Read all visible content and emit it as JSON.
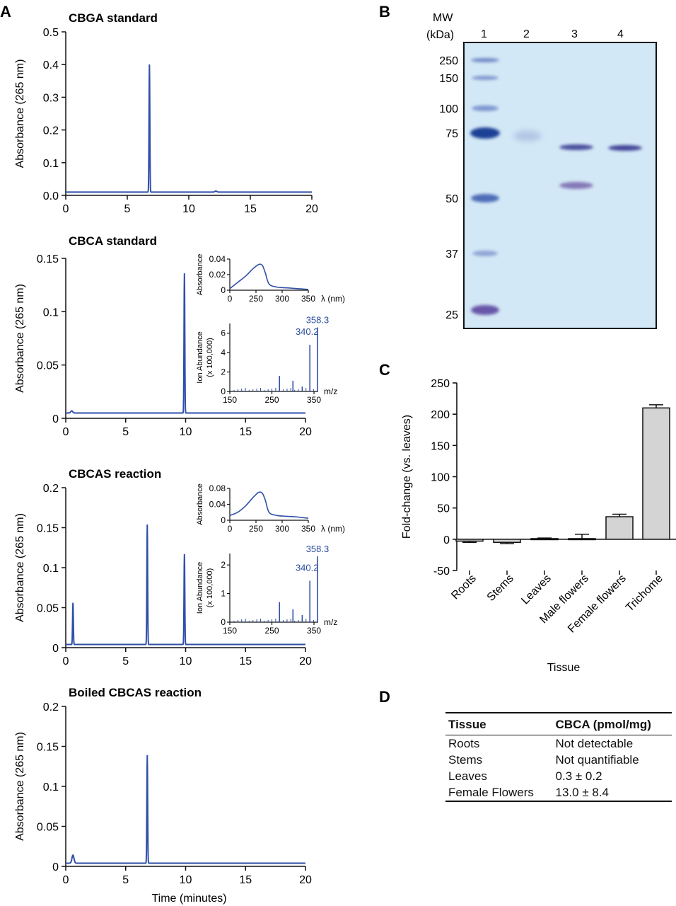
{
  "panels": {
    "a": "A",
    "b": "B",
    "c": "C",
    "d": "D"
  },
  "panel_a": {
    "series_color": "#2f4fa8",
    "ylabel": "Absorbance (265 nm)",
    "xlabel": "Time (minutes)",
    "xticks": [
      "0",
      "5",
      "10",
      "15",
      "20"
    ]
  },
  "chart_data": [
    {
      "type": "line",
      "title": "CBGA standard",
      "ylabel": "Absorbance (265 nm)",
      "xlim": [
        0,
        20
      ],
      "ylim": [
        0,
        0.5
      ],
      "yticks": [
        "0.0",
        "0.1",
        "0.2",
        "0.3",
        "0.4",
        "0.5"
      ],
      "baseline": 0.01,
      "peaks": [
        {
          "x": 6.8,
          "y": 0.4
        },
        {
          "x": 12.2,
          "y": 0.013
        }
      ]
    },
    {
      "type": "line",
      "title": "CBCA standard",
      "ylabel": "Absorbance (265 nm)",
      "xlim": [
        0,
        20
      ],
      "ylim": [
        0,
        0.15
      ],
      "yticks": [
        "0",
        "0.05",
        "0.1",
        "0.15"
      ],
      "baseline": 0.005,
      "peaks": [
        {
          "x": 0.5,
          "y": 0.007
        },
        {
          "x": 9.9,
          "y": 0.136
        }
      ],
      "insets": {
        "uv": {
          "ylabel": "Absorbance",
          "xlabel": "λ (nm)",
          "xticks": [
            "0",
            "250",
            "300",
            "350"
          ],
          "yticks": [
            "0",
            "0.02",
            "0.04"
          ],
          "points": [
            [
              200,
              0.002
            ],
            [
              215,
              0.01
            ],
            [
              230,
              0.018
            ],
            [
              245,
              0.028
            ],
            [
              255,
              0.033
            ],
            [
              262,
              0.032
            ],
            [
              268,
              0.022
            ],
            [
              275,
              0.008
            ],
            [
              290,
              0.004
            ],
            [
              310,
              0.003
            ],
            [
              330,
              0.002
            ],
            [
              350,
              0.001
            ]
          ]
        },
        "ms": {
          "ylabel": "Ion Abundance",
          "ylabel2": "(x 100,000)",
          "xlabel": "m/z",
          "xticks": [
            "150",
            "250",
            "350"
          ],
          "yticks": [
            "0",
            "2",
            "4",
            "6"
          ],
          "peaks": [
            [
              268,
              1.6
            ],
            [
              300,
              1.1
            ],
            [
              322,
              0.5
            ],
            [
              340.2,
              4.8
            ],
            [
              358.3,
              6.6
            ]
          ],
          "labels": [
            "340.2",
            "358.3"
          ]
        }
      }
    },
    {
      "type": "line",
      "title": "CBCAS reaction",
      "ylabel": "Absorbance (265 nm)",
      "xlim": [
        0,
        20
      ],
      "ylim": [
        0,
        0.2
      ],
      "yticks": [
        "0",
        "0.05",
        "0.1",
        "0.15",
        "0.2"
      ],
      "baseline": 0.004,
      "peaks": [
        {
          "x": 0.6,
          "y": 0.056
        },
        {
          "x": 6.8,
          "y": 0.154
        },
        {
          "x": 9.9,
          "y": 0.117
        }
      ],
      "insets": {
        "uv": {
          "ylabel": "Absorbance",
          "xlabel": "λ (nm)",
          "xticks": [
            "0",
            "250",
            "300",
            "350"
          ],
          "yticks": [
            "0",
            "0.04",
            "0.08"
          ],
          "points": [
            [
              200,
              0.012
            ],
            [
              215,
              0.02
            ],
            [
              230,
              0.036
            ],
            [
              245,
              0.058
            ],
            [
              255,
              0.07
            ],
            [
              262,
              0.068
            ],
            [
              268,
              0.05
            ],
            [
              275,
              0.02
            ],
            [
              290,
              0.012
            ],
            [
              310,
              0.01
            ],
            [
              330,
              0.008
            ],
            [
              350,
              0.005
            ]
          ]
        },
        "ms": {
          "ylabel": "Ion Abundance",
          "ylabel2": "(x 100,000)",
          "xlabel": "m/z",
          "xticks": [
            "150",
            "250",
            "350"
          ],
          "yticks": [
            "0",
            "1",
            "2"
          ],
          "peaks": [
            [
              268,
              0.7
            ],
            [
              300,
              0.45
            ],
            [
              322,
              0.25
            ],
            [
              340.2,
              1.45
            ],
            [
              358.3,
              2.3
            ]
          ],
          "labels": [
            "340.2",
            "358.3"
          ]
        }
      }
    },
    {
      "type": "line",
      "title": "Boiled CBCAS reaction",
      "ylabel": "Absorbance (265 nm)",
      "xlabel": "Time (minutes)",
      "xlim": [
        0,
        20
      ],
      "ylim": [
        0,
        0.2
      ],
      "yticks": [
        "0",
        "0.05",
        "0.1",
        "0.15",
        "0.2"
      ],
      "baseline": 0.004,
      "peaks": [
        {
          "x": 0.6,
          "y": 0.014
        },
        {
          "x": 6.8,
          "y": 0.139
        }
      ]
    },
    {
      "type": "bar",
      "panel": "C",
      "categories": [
        "Roots",
        "Stems",
        "Leaves",
        "Male flowers",
        "Female flowers",
        "Trichome"
      ],
      "values": [
        -3,
        -5,
        1,
        1,
        36,
        210
      ],
      "errors": [
        2,
        2,
        1,
        7,
        4,
        5
      ],
      "fill_colors": [
        "#d4d4d4",
        "#d4d4d4",
        "#d4d4d4",
        "#d4d4d4",
        "#d4d4d4",
        "#d4d4d4"
      ],
      "ylabel": "Fold-change (vs. leaves)",
      "xlabel": "Tissue",
      "ylim": [
        -50,
        250
      ],
      "yticks": [
        "-50",
        "0",
        "50",
        "100",
        "150",
        "200",
        "250"
      ]
    }
  ],
  "panel_b": {
    "mw_header": "MW",
    "mw_unit": "(kDa)",
    "lanes": [
      "1",
      "2",
      "3",
      "4"
    ],
    "markers": [
      "250",
      "150",
      "100",
      "75",
      "50",
      "37",
      "25"
    ],
    "gel_color": "#d3e8f6"
  },
  "panel_d": {
    "headers": [
      "Tissue",
      "CBCA (pmol/mg)"
    ],
    "rows": [
      [
        "Roots",
        "Not detectable"
      ],
      [
        "Stems",
        "Not quantifiable"
      ],
      [
        "Leaves",
        "0.3 ± 0.2"
      ],
      [
        "Female Flowers",
        "13.0 ± 8.4"
      ]
    ]
  }
}
